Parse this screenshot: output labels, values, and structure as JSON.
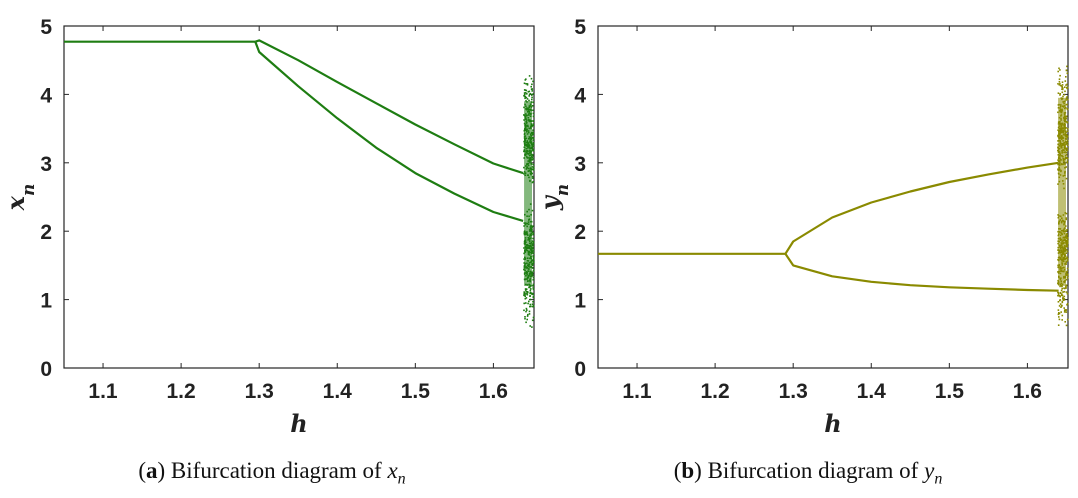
{
  "panels": [
    {
      "id": "a",
      "letter": "a",
      "caption_text": "Bifurcation diagram of",
      "caption_var": "x",
      "caption_sub": "n",
      "color": "#1e7d12"
    },
    {
      "id": "b",
      "letter": "b",
      "caption_text": "Bifurcation diagram of",
      "caption_var": "y",
      "caption_sub": "n",
      "color": "#8a8a00"
    }
  ],
  "chart_data": [
    {
      "type": "scatter",
      "title": "",
      "xlabel": "h",
      "ylabel": "x_n",
      "xlim": [
        1.05,
        1.652
      ],
      "ylim": [
        0,
        5
      ],
      "xticks": [
        1.1,
        1.2,
        1.3,
        1.4,
        1.5,
        1.6
      ],
      "xtick_labels": [
        "1.1",
        "1.2",
        "1.3",
        "1.4",
        "1.5",
        "1.6"
      ],
      "yticks": [
        0,
        1,
        2,
        3,
        4,
        5
      ],
      "ytick_labels": [
        "0",
        "1",
        "2",
        "3",
        "4",
        "5"
      ],
      "grid": false,
      "series": [
        {
          "branch": "fixed_point",
          "x": [
            1.05,
            1.1,
            1.2,
            1.295
          ],
          "y": [
            4.77,
            4.77,
            4.77,
            4.77
          ]
        },
        {
          "branch": "period2_upper",
          "x": [
            1.295,
            1.3,
            1.35,
            1.4,
            1.45,
            1.5,
            1.55,
            1.6,
            1.638
          ],
          "y": [
            4.77,
            4.79,
            4.5,
            4.18,
            3.87,
            3.56,
            3.27,
            2.99,
            2.85
          ]
        },
        {
          "branch": "period2_lower",
          "x": [
            1.295,
            1.3,
            1.35,
            1.4,
            1.45,
            1.5,
            1.55,
            1.6,
            1.638
          ],
          "y": [
            4.77,
            4.62,
            4.12,
            3.65,
            3.22,
            2.85,
            2.55,
            2.28,
            2.15
          ]
        },
        {
          "branch": "chaotic_band",
          "x": [
            1.638,
            1.652
          ],
          "y": [
            0.6,
            4.4
          ]
        }
      ]
    },
    {
      "type": "scatter",
      "title": "",
      "xlabel": "h",
      "ylabel": "y_n",
      "xlim": [
        1.05,
        1.652
      ],
      "ylim": [
        0,
        5
      ],
      "xticks": [
        1.1,
        1.2,
        1.3,
        1.4,
        1.5,
        1.6
      ],
      "xtick_labels": [
        "1.1",
        "1.2",
        "1.3",
        "1.4",
        "1.5",
        "1.6"
      ],
      "yticks": [
        0,
        1,
        2,
        3,
        4,
        5
      ],
      "ytick_labels": [
        "0",
        "1",
        "2",
        "3",
        "4",
        "5"
      ],
      "grid": false,
      "series": [
        {
          "branch": "fixed_point",
          "x": [
            1.05,
            1.1,
            1.2,
            1.29
          ],
          "y": [
            1.67,
            1.67,
            1.67,
            1.67
          ]
        },
        {
          "branch": "period2_upper",
          "x": [
            1.29,
            1.3,
            1.35,
            1.4,
            1.45,
            1.5,
            1.55,
            1.6,
            1.64
          ],
          "y": [
            1.67,
            1.85,
            2.2,
            2.42,
            2.58,
            2.72,
            2.83,
            2.93,
            3.0
          ]
        },
        {
          "branch": "period2_lower",
          "x": [
            1.29,
            1.3,
            1.35,
            1.4,
            1.45,
            1.5,
            1.55,
            1.6,
            1.64
          ],
          "y": [
            1.67,
            1.5,
            1.34,
            1.26,
            1.21,
            1.18,
            1.16,
            1.14,
            1.13
          ]
        },
        {
          "branch": "chaotic_band",
          "x": [
            1.638,
            1.652
          ],
          "y": [
            0.6,
            4.45
          ]
        }
      ]
    }
  ]
}
